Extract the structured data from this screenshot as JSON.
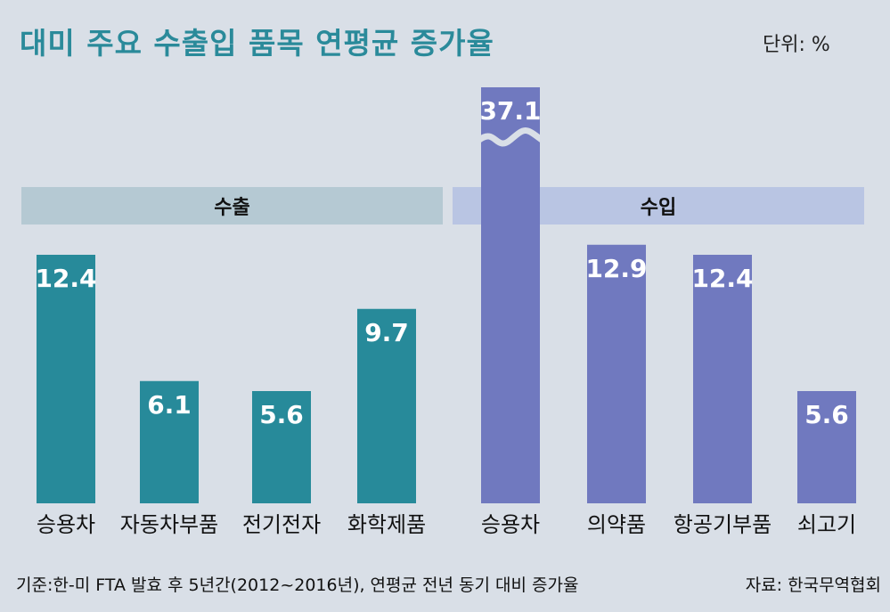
{
  "title": "대미 주요 수출입 품목 연평균 증가율",
  "unit": "단위: %",
  "footer": {
    "basis": "기준:한-미 FTA 발효 후 5년간(2012~2016년), 연평균 전년 동기 대비 증가율",
    "source": "자료: 한국무역협회"
  },
  "colors": {
    "export_bar": "#278a9a",
    "import_bar": "#7079bf",
    "export_header": "#b5c9d3",
    "import_header": "#b9c5e3",
    "title": "#2a8a9a"
  },
  "chart_data": {
    "type": "bar",
    "groups": [
      {
        "name": "수출",
        "categories": [
          "승용차",
          "자동차부품",
          "전기전자",
          "화학제품"
        ],
        "values": [
          12.4,
          6.1,
          5.6,
          9.7
        ]
      },
      {
        "name": "수입",
        "categories": [
          "승용차",
          "의약품",
          "항공기부품",
          "쇠고기"
        ],
        "values": [
          37.1,
          12.9,
          12.4,
          5.6
        ]
      }
    ],
    "axis_break": "수입 승용차 bar truncated (broken axis)",
    "grid": false
  }
}
